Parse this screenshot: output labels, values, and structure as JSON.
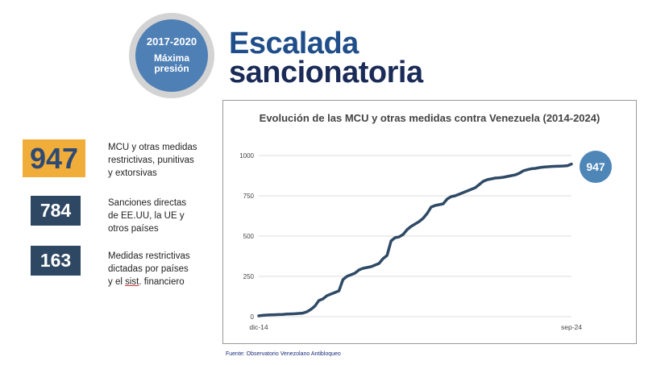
{
  "badge": {
    "years": "2017-2020",
    "label_line1": "Máxima",
    "label_line2": "presión",
    "color": "#4e7fb5"
  },
  "title": {
    "line1": "Escalada",
    "line2": "sancionatoria"
  },
  "stats": [
    {
      "value": "947",
      "lines": [
        "MCU y otras medidas",
        "restrictivas, punitivas",
        "y extorsivas"
      ],
      "color": "#f1ad3a"
    },
    {
      "value": "784",
      "lines": [
        "Sanciones directas",
        "de EE.UU, la UE y",
        "otros países"
      ],
      "color": "#2e4763"
    },
    {
      "value": "163",
      "lines": [
        "Medidas restrictivas",
        "dictadas por países"
      ],
      "last_line_pre": "y el ",
      "last_line_underlined": "sist",
      "last_line_post": ". financiero",
      "color": "#2e4763"
    }
  ],
  "source": "Fuente: Observatorio Venezolano Antibloqueo",
  "chart_data": {
    "type": "line",
    "title": "Evolución de las MCU y otras medidas contra Venezuela (2014-2024)",
    "xlabel": "",
    "ylabel": "",
    "x_tick_labels": [
      "dic-14",
      "sep-24"
    ],
    "y_ticks": [
      0,
      250,
      500,
      750,
      1000
    ],
    "ylim": [
      0,
      1000
    ],
    "grid": true,
    "end_label": "947",
    "line_color": "#2f4a66",
    "series": [
      {
        "x": [
          0,
          1,
          2,
          3,
          4,
          5,
          6,
          7,
          8,
          9,
          10,
          11,
          12,
          13,
          14,
          15,
          16,
          17,
          18,
          19,
          20,
          21,
          22,
          23,
          24,
          25,
          26,
          27,
          28,
          29,
          30,
          31,
          32,
          33,
          34,
          35,
          36,
          37,
          38,
          39,
          40,
          41,
          42,
          43,
          44,
          45,
          46,
          47,
          48,
          49,
          50,
          51,
          52,
          53,
          54,
          55,
          56,
          57,
          58,
          59,
          60,
          61,
          62,
          63,
          64,
          65,
          66,
          67,
          68,
          69,
          70,
          71,
          72,
          73,
          74,
          75,
          76,
          77,
          78
        ],
        "values": [
          5,
          8,
          10,
          11,
          12,
          13,
          14,
          16,
          17,
          18,
          20,
          22,
          30,
          45,
          65,
          100,
          110,
          130,
          140,
          150,
          160,
          230,
          250,
          260,
          270,
          290,
          300,
          305,
          310,
          320,
          330,
          360,
          380,
          470,
          490,
          495,
          510,
          540,
          560,
          575,
          590,
          610,
          640,
          680,
          690,
          695,
          700,
          730,
          745,
          750,
          760,
          770,
          780,
          790,
          800,
          820,
          840,
          850,
          855,
          860,
          862,
          865,
          870,
          875,
          880,
          890,
          905,
          912,
          918,
          920,
          925,
          928,
          930,
          932,
          933,
          934,
          935,
          937,
          947
        ]
      }
    ]
  }
}
